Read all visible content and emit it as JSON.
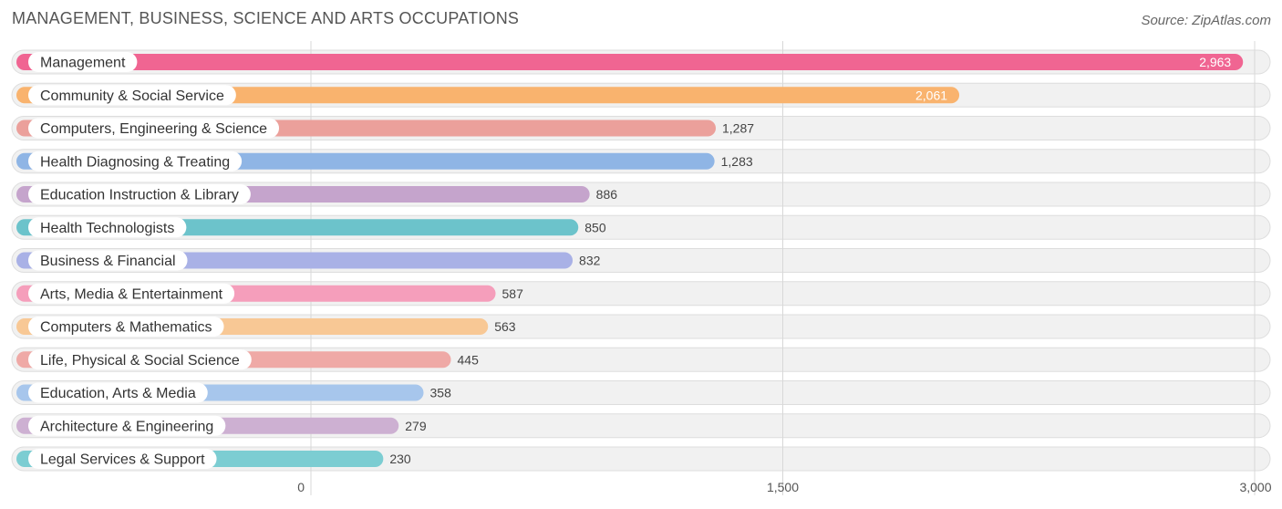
{
  "header": {
    "title": "MANAGEMENT, BUSINESS, SCIENCE AND ARTS OCCUPATIONS",
    "source": "Source: ZipAtlas.com"
  },
  "chart_data": {
    "type": "bar",
    "orientation": "horizontal",
    "title": "MANAGEMENT, BUSINESS, SCIENCE AND ARTS OCCUPATIONS",
    "xlim": [
      0,
      3000
    ],
    "xticks": [
      0,
      1500,
      3000
    ],
    "xtick_labels": [
      "0",
      "1,500",
      "3,000"
    ],
    "grid": true,
    "categories": [
      "Management",
      "Community & Social Service",
      "Computers, Engineering & Science",
      "Health Diagnosing & Treating",
      "Education Instruction & Library",
      "Health Technologists",
      "Business & Financial",
      "Arts, Media & Entertainment",
      "Computers & Mathematics",
      "Life, Physical & Social Science",
      "Education, Arts & Media",
      "Architecture & Engineering",
      "Legal Services & Support"
    ],
    "values": [
      2963,
      2061,
      1287,
      1283,
      886,
      850,
      832,
      587,
      563,
      445,
      358,
      279,
      230
    ],
    "value_labels": [
      "2,963",
      "2,061",
      "1,287",
      "1,283",
      "886",
      "850",
      "832",
      "587",
      "563",
      "445",
      "358",
      "279",
      "230"
    ],
    "colors": [
      "#f06592",
      "#f9b36e",
      "#eba09b",
      "#8fb5e5",
      "#c5a4cc",
      "#6cc3cb",
      "#a9b1e6",
      "#f59ebb",
      "#f8c895",
      "#efa9a6",
      "#a7c6ec",
      "#cdb0d2",
      "#7ccdd2"
    ]
  }
}
